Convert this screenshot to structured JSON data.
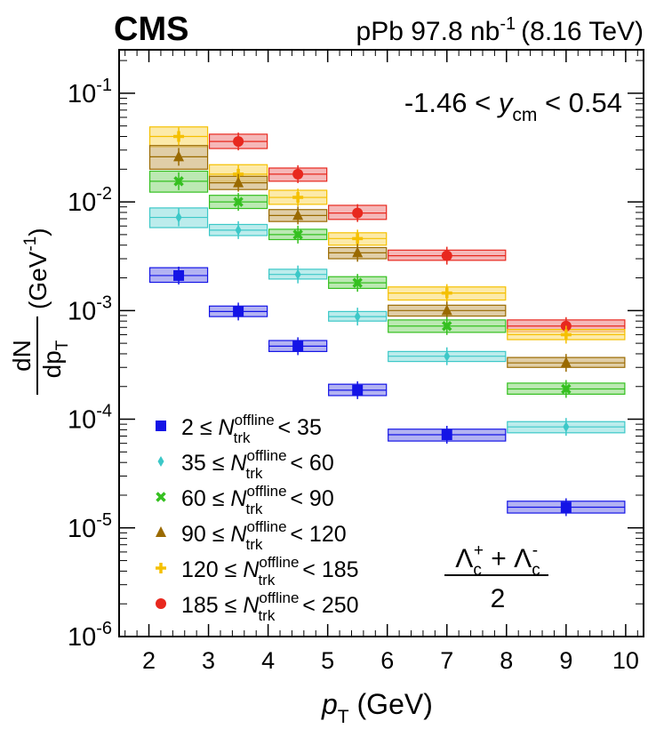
{
  "header": {
    "experiment": "CMS",
    "lumi_prefix": "pPb 97.8 nb",
    "lumi_exp": "-1",
    "energy": "(8.16 TeV)"
  },
  "rapidity": {
    "left": "-1.46 < ",
    "var": "y",
    "sub": "cm",
    "right": " < 0.54"
  },
  "particle": {
    "lambda": "Λ",
    "sub": "c",
    "plus": "+",
    "minus": "-",
    "op": " + ",
    "denominator": "2"
  },
  "chart_data": {
    "type": "scatter",
    "yscale": "log",
    "title": "",
    "xlabel": "p_T (GeV)",
    "ylabel": "dN/dp_T (GeV^-1)",
    "xlim": [
      1.5,
      10.3
    ],
    "ylim_log10": [
      -6,
      -0.6
    ],
    "xticks": [
      "2",
      "3",
      "4",
      "5",
      "6",
      "7",
      "8",
      "9",
      "10"
    ],
    "xtick_values": [
      2,
      3,
      4,
      5,
      6,
      7,
      8,
      9,
      10
    ],
    "yticks": [
      {
        "base": "10",
        "exp": "-6",
        "value_log10": -6
      },
      {
        "base": "10",
        "exp": "-5",
        "value_log10": -5
      },
      {
        "base": "10",
        "exp": "-4",
        "value_log10": -4
      },
      {
        "base": "10",
        "exp": "-3",
        "value_log10": -3
      },
      {
        "base": "10",
        "exp": "-2",
        "value_log10": -2
      },
      {
        "base": "10",
        "exp": "-1",
        "value_log10": -1
      }
    ],
    "axis_labels": {
      "x_var": "p",
      "x_sub": "T",
      "x_unit": " (GeV)",
      "y_num": "dN",
      "y_den": "dp",
      "y_den_sub": "T",
      "y_unit": "(GeV",
      "y_unit_exp": "-1",
      "y_unit_close": ")"
    },
    "bins": [
      [
        2,
        3
      ],
      [
        3,
        4
      ],
      [
        4,
        5
      ],
      [
        5,
        6
      ],
      [
        6,
        8
      ],
      [
        8,
        10
      ]
    ],
    "legend_position": "bottom-left",
    "series": [
      {
        "name": "185 ≤ N_trk^offline < 250",
        "label_lo": "185 ≤ ",
        "label_hi": " < 250",
        "color": "#e8281e",
        "fill": "#f2a0a0",
        "marker": "circle",
        "x": [
          3.5,
          4.5,
          5.5,
          7.0,
          9.0
        ],
        "bins": [
          [
            3,
            4
          ],
          [
            4,
            5
          ],
          [
            5,
            6
          ],
          [
            6,
            8
          ],
          [
            8,
            10
          ]
        ],
        "values": [
          0.036,
          0.018,
          0.0079,
          0.0032,
          0.00072
        ],
        "box_lo": [
          0.031,
          0.0155,
          0.0069,
          0.0029,
          0.00064
        ],
        "box_hi": [
          0.042,
          0.0205,
          0.0093,
          0.0036,
          0.00082
        ]
      },
      {
        "name": "120 ≤ N_trk^offline < 185",
        "label_lo": "120 ≤ ",
        "label_hi": " < 185",
        "color": "#f5c000",
        "fill": "#fbe38c",
        "marker": "cross",
        "x": [
          2.5,
          3.5,
          4.5,
          5.5,
          7.0,
          9.0
        ],
        "bins": [
          [
            2,
            3
          ],
          [
            3,
            4
          ],
          [
            4,
            5
          ],
          [
            5,
            6
          ],
          [
            6,
            8
          ],
          [
            8,
            10
          ]
        ],
        "values": [
          0.04,
          0.018,
          0.011,
          0.0046,
          0.00145,
          0.0006
        ],
        "box_lo": [
          0.032,
          0.0155,
          0.0095,
          0.004,
          0.00125,
          0.00054
        ],
        "box_hi": [
          0.049,
          0.022,
          0.0128,
          0.0052,
          0.00165,
          0.00067
        ]
      },
      {
        "name": "90 ≤ N_trk^offline < 120",
        "label_lo": "90 ≤ ",
        "label_hi": " < 120",
        "color": "#9a6a00",
        "fill": "#d6bd8a",
        "marker": "triangle",
        "x": [
          2.5,
          3.5,
          4.5,
          5.5,
          7.0,
          9.0
        ],
        "bins": [
          [
            2,
            3
          ],
          [
            3,
            4
          ],
          [
            4,
            5
          ],
          [
            5,
            6
          ],
          [
            6,
            8
          ],
          [
            8,
            10
          ]
        ],
        "values": [
          0.026,
          0.015,
          0.0075,
          0.0034,
          0.001,
          0.00033
        ],
        "box_lo": [
          0.02,
          0.013,
          0.0066,
          0.003,
          0.00089,
          0.0003
        ],
        "box_hi": [
          0.033,
          0.0172,
          0.0085,
          0.0038,
          0.00112,
          0.00037
        ]
      },
      {
        "name": "60 ≤ N_trk^offline < 90",
        "label_lo": "60 ≤ ",
        "label_hi": " < 90",
        "color": "#35c020",
        "fill": "#a6e29a",
        "marker": "x",
        "x": [
          2.5,
          3.5,
          4.5,
          5.5,
          7.0,
          9.0
        ],
        "bins": [
          [
            2,
            3
          ],
          [
            3,
            4
          ],
          [
            4,
            5
          ],
          [
            5,
            6
          ],
          [
            6,
            8
          ],
          [
            8,
            10
          ]
        ],
        "values": [
          0.0155,
          0.01,
          0.005,
          0.0018,
          0.00072,
          0.00019
        ],
        "box_lo": [
          0.0123,
          0.0087,
          0.0045,
          0.0016,
          0.00063,
          0.00017
        ],
        "box_hi": [
          0.0192,
          0.0115,
          0.0056,
          0.00205,
          0.00082,
          0.000215
        ]
      },
      {
        "name": "35 ≤ N_trk^offline < 60",
        "label_lo": "35 ≤ ",
        "label_hi": " < 60",
        "color": "#3cc8c8",
        "fill": "#a6e6e6",
        "marker": "diamond",
        "x": [
          2.5,
          3.5,
          4.5,
          5.5,
          7.0,
          9.0
        ],
        "bins": [
          [
            2,
            3
          ],
          [
            3,
            4
          ],
          [
            4,
            5
          ],
          [
            5,
            6
          ],
          [
            6,
            8
          ],
          [
            8,
            10
          ]
        ],
        "values": [
          0.0072,
          0.0055,
          0.00215,
          0.00088,
          0.00038,
          8.5e-05
        ],
        "box_lo": [
          0.0058,
          0.0049,
          0.00195,
          0.0008,
          0.00034,
          7.5e-05
        ],
        "box_hi": [
          0.0088,
          0.0062,
          0.0024,
          0.00098,
          0.00042,
          9.5e-05
        ]
      },
      {
        "name": "2 ≤ N_trk^offline < 35",
        "label_lo": "2 ≤ ",
        "label_hi": " < 35",
        "color": "#1414e6",
        "fill": "#9a9aee",
        "marker": "square",
        "x": [
          2.5,
          3.5,
          4.5,
          5.5,
          7.0,
          9.0
        ],
        "bins": [
          [
            2,
            3
          ],
          [
            3,
            4
          ],
          [
            4,
            5
          ],
          [
            5,
            6
          ],
          [
            6,
            8
          ],
          [
            8,
            10
          ]
        ],
        "values": [
          0.0021,
          0.00098,
          0.00047,
          0.000185,
          7.2e-05,
          1.55e-05
        ],
        "box_lo": [
          0.00182,
          0.00088,
          0.00042,
          0.000165,
          6.3e-05,
          1.37e-05
        ],
        "box_hi": [
          0.00248,
          0.0011,
          0.00053,
          0.00021,
          8.1e-05,
          1.76e-05
        ]
      }
    ],
    "legend_order": [
      5,
      4,
      3,
      2,
      1,
      0
    ],
    "legend_n": "N",
    "legend_sup": "offline",
    "legend_sub": "trk"
  }
}
